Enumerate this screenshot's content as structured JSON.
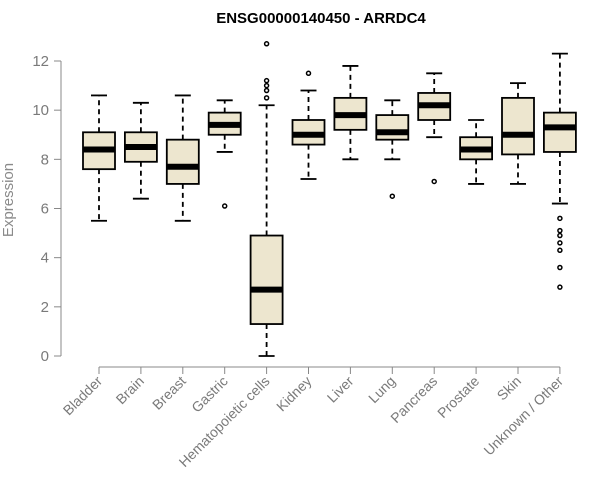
{
  "chart_data": {
    "type": "boxplot",
    "title": "ENSG00000140450 - ARRDC4",
    "ylabel": "Expression",
    "xlabel": "",
    "ylim": [
      0,
      12
    ],
    "yticks": [
      0,
      2,
      4,
      6,
      8,
      10,
      12
    ],
    "colors": {
      "box_fill": "#ede6cf",
      "stroke": "#000000",
      "axis": "#888888",
      "label": "#7a7a7a"
    },
    "categories": [
      "Bladder",
      "Brain",
      "Breast",
      "Gastric",
      "Hematopoietic cells",
      "Kidney",
      "Liver",
      "Lung",
      "Pancreas",
      "Prostate",
      "Skin",
      "Unknown / Other"
    ],
    "boxes": [
      {
        "category": "Bladder",
        "whisker_low": 5.5,
        "q1": 7.6,
        "median": 8.4,
        "q3": 9.1,
        "whisker_high": 10.6,
        "outliers": []
      },
      {
        "category": "Brain",
        "whisker_low": 6.4,
        "q1": 7.9,
        "median": 8.5,
        "q3": 9.1,
        "whisker_high": 10.3,
        "outliers": []
      },
      {
        "category": "Breast",
        "whisker_low": 5.5,
        "q1": 7.0,
        "median": 7.7,
        "q3": 8.8,
        "whisker_high": 10.6,
        "outliers": []
      },
      {
        "category": "Gastric",
        "whisker_low": 8.3,
        "q1": 9.0,
        "median": 9.4,
        "q3": 9.9,
        "whisker_high": 10.4,
        "outliers": [
          6.1
        ]
      },
      {
        "category": "Hematopoietic cells",
        "whisker_low": 0.0,
        "q1": 1.3,
        "median": 2.7,
        "q3": 4.9,
        "whisker_high": 10.2,
        "outliers": [
          10.5,
          10.8,
          11.0,
          11.2,
          12.7
        ]
      },
      {
        "category": "Kidney",
        "whisker_low": 7.2,
        "q1": 8.6,
        "median": 9.0,
        "q3": 9.6,
        "whisker_high": 10.8,
        "outliers": [
          11.5
        ]
      },
      {
        "category": "Liver",
        "whisker_low": 8.0,
        "q1": 9.2,
        "median": 9.8,
        "q3": 10.5,
        "whisker_high": 11.8,
        "outliers": []
      },
      {
        "category": "Lung",
        "whisker_low": 8.0,
        "q1": 8.8,
        "median": 9.1,
        "q3": 9.8,
        "whisker_high": 10.4,
        "outliers": [
          6.5
        ]
      },
      {
        "category": "Pancreas",
        "whisker_low": 8.9,
        "q1": 9.6,
        "median": 10.2,
        "q3": 10.7,
        "whisker_high": 11.5,
        "outliers": [
          7.1
        ]
      },
      {
        "category": "Prostate",
        "whisker_low": 7.0,
        "q1": 8.0,
        "median": 8.4,
        "q3": 8.9,
        "whisker_high": 9.6,
        "outliers": []
      },
      {
        "category": "Skin",
        "whisker_low": 7.0,
        "q1": 8.2,
        "median": 9.0,
        "q3": 10.5,
        "whisker_high": 11.1,
        "outliers": []
      },
      {
        "category": "Unknown / Other",
        "whisker_low": 6.2,
        "q1": 8.3,
        "median": 9.3,
        "q3": 9.9,
        "whisker_high": 12.3,
        "outliers": [
          2.8,
          3.6,
          4.3,
          4.6,
          4.9,
          5.1,
          5.6
        ]
      }
    ]
  }
}
